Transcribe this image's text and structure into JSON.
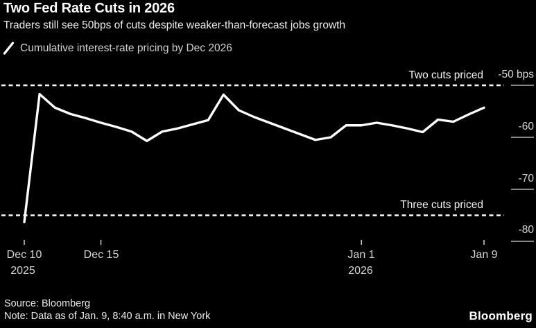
{
  "header": {
    "title": "Two Fed Rate Cuts in 2026",
    "subtitle": "Traders still see 50bps of cuts despite weaker-than-forecast jobs growth"
  },
  "legend": {
    "label": "Cumulative interest-rate pricing by Dec 2026"
  },
  "colors": {
    "background": "#000000",
    "series_line": "#ffffff",
    "reference_line": "#ffffff",
    "tick": "#d6d6d6"
  },
  "chart_data": {
    "type": "line",
    "title": "Two Fed Rate Cuts in 2026",
    "subtitle": "Traders still see 50bps of cuts despite weaker-than-forecast jobs growth",
    "unit": "bps",
    "grid": false,
    "legend_position": "top-left",
    "ylim": [
      -83,
      -47
    ],
    "series": [
      {
        "name": "Cumulative interest-rate pricing by Dec 2026",
        "x": [
          "Dec 10",
          "Dec 11",
          "Dec 12",
          "Dec 13",
          "Dec 14",
          "Dec 15",
          "Dec 16",
          "Dec 17",
          "Dec 18",
          "Dec 19",
          "Dec 20",
          "Dec 21",
          "Dec 22",
          "Dec 23",
          "Dec 24",
          "Dec 25",
          "Dec 26",
          "Dec 27",
          "Dec 28",
          "Dec 29",
          "Dec 30",
          "Dec 31",
          "Jan 1",
          "Jan 2",
          "Jan 3",
          "Jan 4",
          "Jan 5",
          "Jan 6",
          "Jan 7",
          "Jan 8",
          "Jan 9"
        ],
        "values": [
          -76.3,
          -51.7,
          -54.3,
          -55.5,
          -56.3,
          -57.2,
          -58.0,
          -58.9,
          -60.7,
          -58.9,
          -58.3,
          -57.5,
          -56.7,
          -51.8,
          -54.8,
          -56.1,
          -57.2,
          -58.3,
          -59.4,
          -60.5,
          -60.0,
          -57.7,
          -57.7,
          -57.2,
          -57.7,
          -58.3,
          -59.0,
          -56.6,
          -57.0,
          -55.6,
          -54.3
        ]
      }
    ],
    "y_ticks": [
      {
        "label": "-50 bps",
        "value": -50
      },
      {
        "label": "-60",
        "value": -60
      },
      {
        "label": "-70",
        "value": -70
      },
      {
        "label": "-80",
        "value": -80
      }
    ],
    "x_ticks": [
      {
        "label": "Dec 10",
        "sublabel": "2025",
        "day_index": 0
      },
      {
        "label": "Dec 15",
        "sublabel": "",
        "day_index": 5
      },
      {
        "label": "Jan 1",
        "sublabel": "2026",
        "day_index": 22
      },
      {
        "label": "Jan 9",
        "sublabel": "",
        "day_index": 30
      }
    ],
    "reference_lines": [
      {
        "label": "Two cuts priced",
        "value": -50
      },
      {
        "label": "Three cuts priced",
        "value": -75
      }
    ]
  },
  "footer": {
    "source": "Source: Bloomberg",
    "note": "Note: Data as of Jan. 9, 8:40 a.m. in New York",
    "brand": "Bloomberg"
  }
}
